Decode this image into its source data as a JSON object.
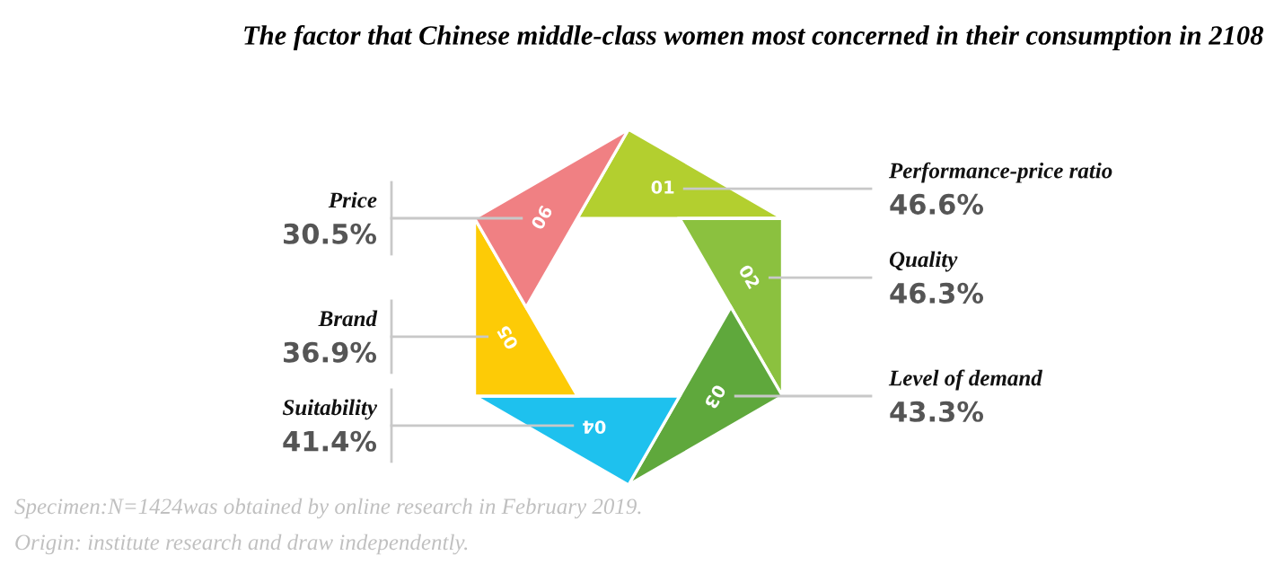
{
  "chart_data": {
    "type": "other",
    "title": "The factor that Chinese middle-class women most concerned in their consumption in 2108",
    "categories": [
      "Performance-price ratio",
      "Quality",
      "Level of demand",
      "Suitability",
      "Brand",
      "Price"
    ],
    "values": [
      46.6,
      46.3,
      43.3,
      41.4,
      36.9,
      30.5
    ],
    "value_labels": [
      "46.6%",
      "46.3%",
      "43.3%",
      "41.4%",
      "36.9%",
      "30.5%"
    ],
    "colors": [
      "#b3cf2f",
      "#8bc13f",
      "#5fa83c",
      "#1ec1ee",
      "#fdcb06",
      "#f08083"
    ],
    "annotations": [
      "01",
      "02",
      "03",
      "04",
      "05",
      "06",
      "Specimen:N=1424was obtained by online research in February 2019.",
      "Origin: institute research and draw independently."
    ]
  }
}
